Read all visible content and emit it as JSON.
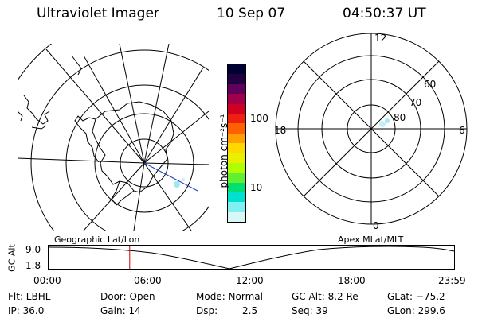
{
  "header": {
    "title": "Ultraviolet Imager",
    "date": "10 Sep 07",
    "time": "04:50:37 UT"
  },
  "colorbar": {
    "unit_label": "photon cm⁻²s⁻¹",
    "tick_100": "100",
    "tick_10": "10",
    "colors": [
      "#000033",
      "#200040",
      "#60005a",
      "#a0004a",
      "#d00022",
      "#f02010",
      "#ff6000",
      "#ffa000",
      "#ffd800",
      "#e8f000",
      "#b0ff00",
      "#60f030",
      "#00e070",
      "#00e0d0",
      "#80f0f0",
      "#d8f8f8"
    ]
  },
  "polar_plot": {
    "mlt_12": "12",
    "mlt_18": "18",
    "mlt_6": "6",
    "mlt_0": "0",
    "lat_60": "60",
    "lat_70": "70",
    "lat_80": "80"
  },
  "timeline": {
    "ylabel": "GC Alt",
    "ytop": "9.0",
    "ybottom": "1.8",
    "left_label": "Geographic Lat/Lon",
    "right_label": "Apex MLat/MLT",
    "ticks": [
      "00:00",
      "06:00",
      "12:00",
      "18:00",
      "23:59"
    ],
    "marker_time_fraction": 0.2
  },
  "status": {
    "flt": "Flt: LBHL",
    "ip": "IP: 36.0",
    "door": "Door: Open",
    "gain": "Gain: 14",
    "mode": "Mode: Normal",
    "dsp_label": "Dsp:",
    "dsp_value": "2.5",
    "gcalt": "GC Alt: 8.2 Re",
    "seq": "Seq: 39",
    "glat": "GLat: −75.2",
    "glon": "GLon: 299.6"
  }
}
